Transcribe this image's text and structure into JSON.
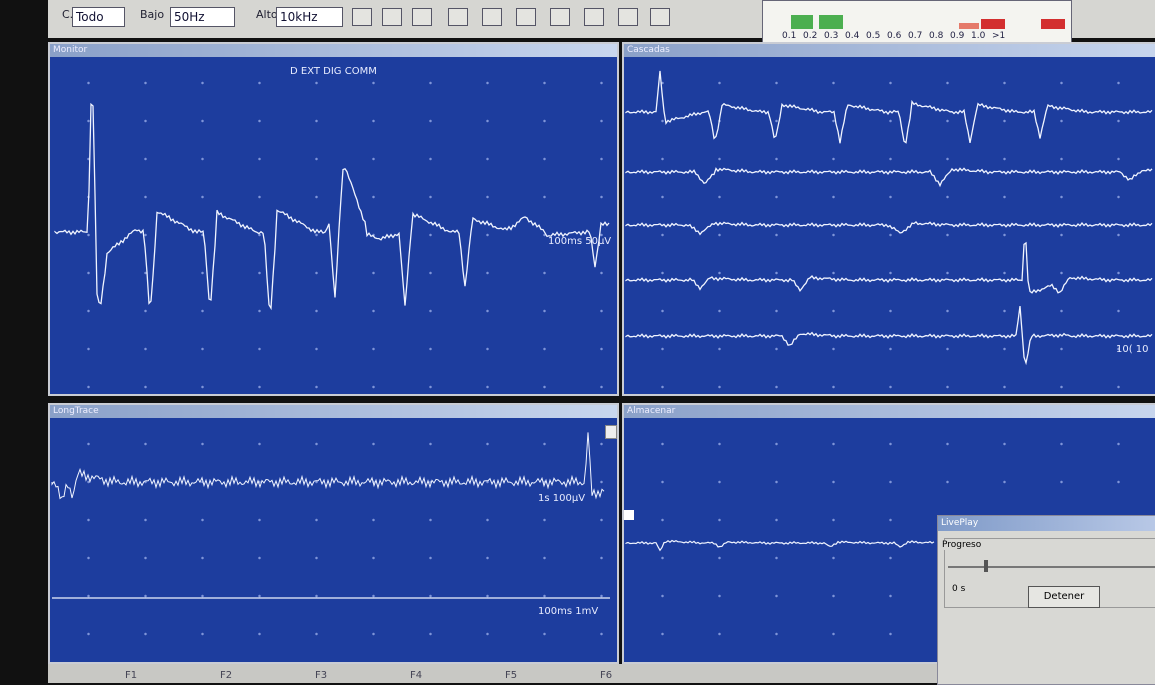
{
  "toolbar": {
    "channel_label": "C.",
    "channel": "Todo",
    "low_label": "Bajo",
    "low": "50Hz",
    "high_label": "Alto",
    "high": "10kHz"
  },
  "histogram": {
    "labels": [
      "0.1",
      "0.2",
      "0.3",
      "0.4",
      "0.5",
      "0.6",
      "0.7",
      "0.8",
      "0.9",
      "1.0",
      ">1"
    ]
  },
  "panels": [
    {
      "title": "Monitor",
      "labels": [
        "D EXT DIG COMM",
        "100ms 50µV"
      ]
    },
    {
      "title": "Cascadas",
      "labels": [
        "10( 10"
      ]
    },
    {
      "title": "LongTrace",
      "labels": [
        "1s 100µV",
        "100ms 1mV"
      ]
    },
    {
      "title": "Almacenar"
    }
  ],
  "dialog": {
    "title": "LivePlay",
    "group": "Progreso",
    "time": "0 s",
    "button": "Detener"
  },
  "function_keys": [
    "F1",
    "F2",
    "F3",
    "F4",
    "F5",
    "F6"
  ]
}
